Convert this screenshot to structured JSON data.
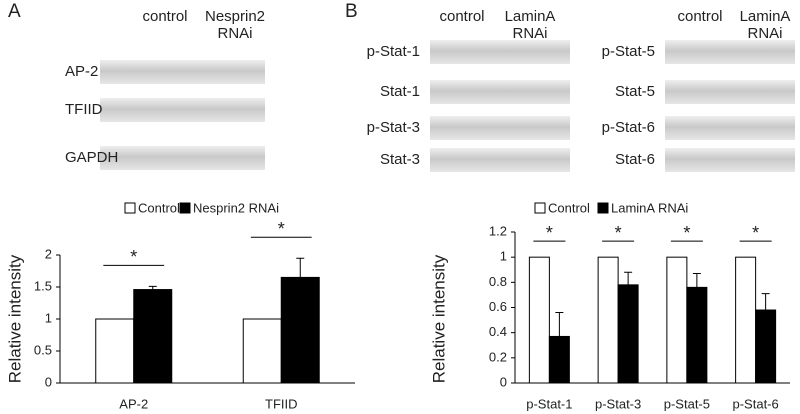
{
  "blots": [
    {
      "panel_label": "A",
      "columns": [
        "control",
        "Nesprin2 RNAi"
      ],
      "rows": [
        "AP-2",
        "TFIID",
        "GAPDH"
      ]
    },
    {
      "panel_label": "B",
      "columns": [
        "control",
        "LaminA RNAi"
      ],
      "rows": [
        "p-Stat-1",
        "Stat-1",
        "p-Stat-3",
        "Stat-3"
      ]
    },
    {
      "columns": [
        "control",
        "LaminA RNAi"
      ],
      "rows": [
        "p-Stat-5",
        "Stat-5",
        "p-Stat-6",
        "Stat-6"
      ]
    }
  ],
  "chart_data": [
    {
      "type": "bar",
      "y_label": "Relative intensity",
      "categories": [
        "AP-2",
        "TFIID"
      ],
      "series": [
        {
          "name": "Control",
          "color": "#ffffff",
          "values": [
            1,
            1
          ]
        },
        {
          "name": "Nesprin2 RNAi",
          "color": "#000000",
          "values": [
            1.46,
            1.65
          ],
          "errors": [
            0.05,
            0.3
          ]
        }
      ],
      "ylim": [
        0,
        2
      ],
      "yticks": [
        0,
        0.5,
        1,
        1.5,
        2
      ],
      "annotations": [
        "*",
        "*"
      ]
    },
    {
      "type": "bar",
      "y_label": "Relative intensity",
      "categories": [
        "p-Stat-1",
        "p-Stat-3",
        "p-Stat-5",
        "p-Stat-6"
      ],
      "series": [
        {
          "name": "Control",
          "color": "#ffffff",
          "values": [
            1,
            1,
            1,
            1
          ]
        },
        {
          "name": "LaminA RNAi",
          "color": "#000000",
          "values": [
            0.37,
            0.78,
            0.76,
            0.58
          ],
          "errors": [
            0.19,
            0.1,
            0.11,
            0.13
          ]
        }
      ],
      "ylim": [
        0,
        1.2
      ],
      "yticks": [
        0,
        0.2,
        0.4,
        0.6,
        0.8,
        1,
        1.2
      ],
      "annotations": [
        "*",
        "*",
        "*",
        "*"
      ]
    }
  ]
}
